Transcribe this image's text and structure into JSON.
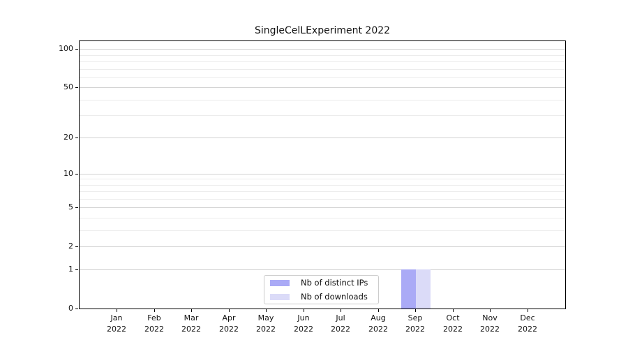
{
  "chart_data": {
    "type": "bar",
    "title": "SingleCelLExperiment 2022",
    "x_labels": [
      [
        "Jan",
        "2022"
      ],
      [
        "Feb",
        "2022"
      ],
      [
        "Mar",
        "2022"
      ],
      [
        "Apr",
        "2022"
      ],
      [
        "May",
        "2022"
      ],
      [
        "Jun",
        "2022"
      ],
      [
        "Jul",
        "2022"
      ],
      [
        "Aug",
        "2022"
      ],
      [
        "Sep",
        "2022"
      ],
      [
        "Oct",
        "2022"
      ],
      [
        "Nov",
        "2022"
      ],
      [
        "Dec",
        "2022"
      ]
    ],
    "series": [
      {
        "name": "Nb of distinct IPs",
        "color": "#aaaaf6",
        "values": [
          0,
          0,
          0,
          0,
          0,
          0,
          0,
          0,
          1,
          0,
          0,
          0
        ]
      },
      {
        "name": "Nb of downloads",
        "color": "#dbdbf8",
        "values": [
          0,
          0,
          0,
          0,
          0,
          0,
          0,
          0,
          1,
          0,
          0,
          0
        ]
      }
    ],
    "yscale": "log10(value+1)",
    "ylim": [
      0,
      116
    ],
    "y_major_ticks": [
      0,
      1,
      2,
      5,
      10,
      20,
      50,
      100
    ],
    "y_minor_gridlines": [
      3,
      4,
      6,
      7,
      8,
      9,
      30,
      40,
      60,
      70,
      80,
      90
    ],
    "grid": "horizontal-only",
    "legend_position": "lower center",
    "background": "#ffffff"
  }
}
